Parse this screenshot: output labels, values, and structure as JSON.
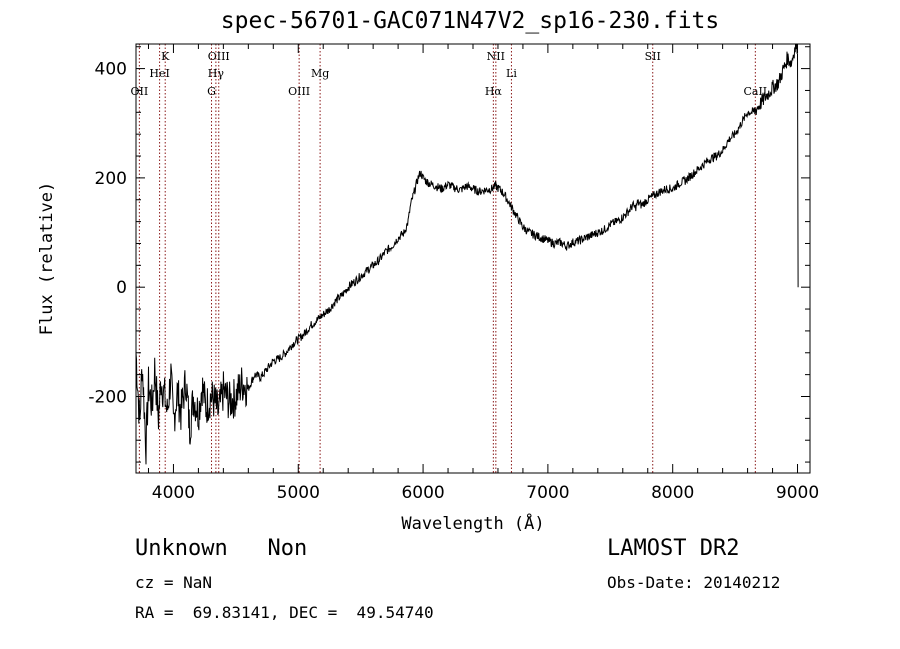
{
  "info": {
    "class_label": "Unknown   Non",
    "survey": "LAMOST DR2",
    "cz": "cz = NaN",
    "obs_date": "Obs-Date: 20140212",
    "ra_dec": "RA =  69.83141, DEC =  49.54740"
  },
  "colors": {
    "spectrum": "#000000",
    "line_marker": "#8b1a1a",
    "axes": "#000000"
  },
  "chart_data": {
    "type": "line",
    "title": "spec-56701-GAC071N47V2_sp16-230.fits",
    "xlabel": "Wavelength (Å)",
    "ylabel": "Flux (relative)",
    "xlim": [
      3700,
      9100
    ],
    "ylim": [
      -340,
      445
    ],
    "xticks": [
      4000,
      5000,
      6000,
      7000,
      8000,
      9000
    ],
    "yticks": [
      -200,
      0,
      200,
      400
    ],
    "grid": false,
    "legend": "none",
    "series": [
      {
        "x": [
          3700,
          3730,
          3750,
          3780,
          3800,
          3830,
          3850,
          3880,
          3900,
          3930,
          3950,
          3980,
          4000,
          4030,
          4060,
          4100,
          4130,
          4160,
          4200,
          4230,
          4260,
          4300,
          4330,
          4360,
          4400,
          4450,
          4500,
          4550,
          4600,
          4650,
          4700,
          4750,
          4800,
          4850,
          4900,
          4950,
          5000,
          5050,
          5100,
          5150,
          5200,
          5250,
          5300,
          5350,
          5400,
          5450,
          5500,
          5550,
          5600,
          5650,
          5700,
          5750,
          5800,
          5850,
          5880,
          5900,
          5930,
          5960,
          5980,
          6000,
          6020,
          6050,
          6100,
          6150,
          6200,
          6250,
          6300,
          6350,
          6400,
          6450,
          6500,
          6550,
          6580,
          6620,
          6650,
          6700,
          6750,
          6800,
          6850,
          6900,
          6950,
          7000,
          7050,
          7100,
          7150,
          7200,
          7250,
          7300,
          7350,
          7400,
          7450,
          7500,
          7550,
          7600,
          7650,
          7680,
          7700,
          7720,
          7750,
          7800,
          7850,
          7900,
          7950,
          8000,
          8050,
          8100,
          8150,
          8200,
          8250,
          8300,
          8350,
          8400,
          8450,
          8500,
          8550,
          8600,
          8650,
          8700,
          8750,
          8800,
          8850,
          8880,
          8900,
          8920,
          8950,
          8970,
          8985,
          9000,
          9005
        ],
        "y": [
          -120,
          -250,
          -140,
          -290,
          -180,
          -220,
          -150,
          -240,
          -170,
          -200,
          -230,
          -160,
          -250,
          -190,
          -230,
          -170,
          -260,
          -200,
          -230,
          -180,
          -220,
          -200,
          -210,
          -230,
          -190,
          -210,
          -200,
          -175,
          -185,
          -160,
          -165,
          -150,
          -135,
          -130,
          -120,
          -105,
          -95,
          -85,
          -70,
          -60,
          -50,
          -40,
          -25,
          -15,
          0,
          10,
          20,
          30,
          40,
          50,
          65,
          75,
          90,
          100,
          120,
          150,
          175,
          200,
          210,
          200,
          195,
          190,
          185,
          180,
          188,
          182,
          178,
          185,
          180,
          175,
          178,
          180,
          185,
          178,
          170,
          150,
          130,
          110,
          100,
          95,
          90,
          85,
          80,
          82,
          75,
          82,
          85,
          90,
          95,
          100,
          105,
          115,
          120,
          128,
          140,
          150,
          145,
          155,
          150,
          160,
          168,
          175,
          180,
          180,
          190,
          195,
          205,
          215,
          225,
          235,
          240,
          250,
          270,
          280,
          300,
          320,
          320,
          335,
          350,
          365,
          375,
          395,
          405,
          420,
          410,
          430,
          440,
          440,
          0
        ]
      }
    ],
    "line_markers": [
      {
        "label": "OII",
        "x": 3727,
        "row": 3
      },
      {
        "label": "K",
        "x": 3934,
        "row": 1
      },
      {
        "label": "HeI",
        "x": 3889,
        "row": 2
      },
      {
        "label": "OIII",
        "x": 4363,
        "row": 1
      },
      {
        "label": "Hγ",
        "x": 4340,
        "row": 2
      },
      {
        "label": "G",
        "x": 4305,
        "row": 3
      },
      {
        "label": "Mg",
        "x": 5175,
        "row": 2
      },
      {
        "label": "OIII",
        "x": 5007,
        "row": 3
      },
      {
        "label": "NII",
        "x": 6583,
        "row": 1
      },
      {
        "label": "Li",
        "x": 6708,
        "row": 2
      },
      {
        "label": "Hα",
        "x": 6563,
        "row": 3
      },
      {
        "label": "SII",
        "x": 7840,
        "row": 1
      },
      {
        "label": "CaII",
        "x": 8662,
        "row": 3
      }
    ]
  }
}
